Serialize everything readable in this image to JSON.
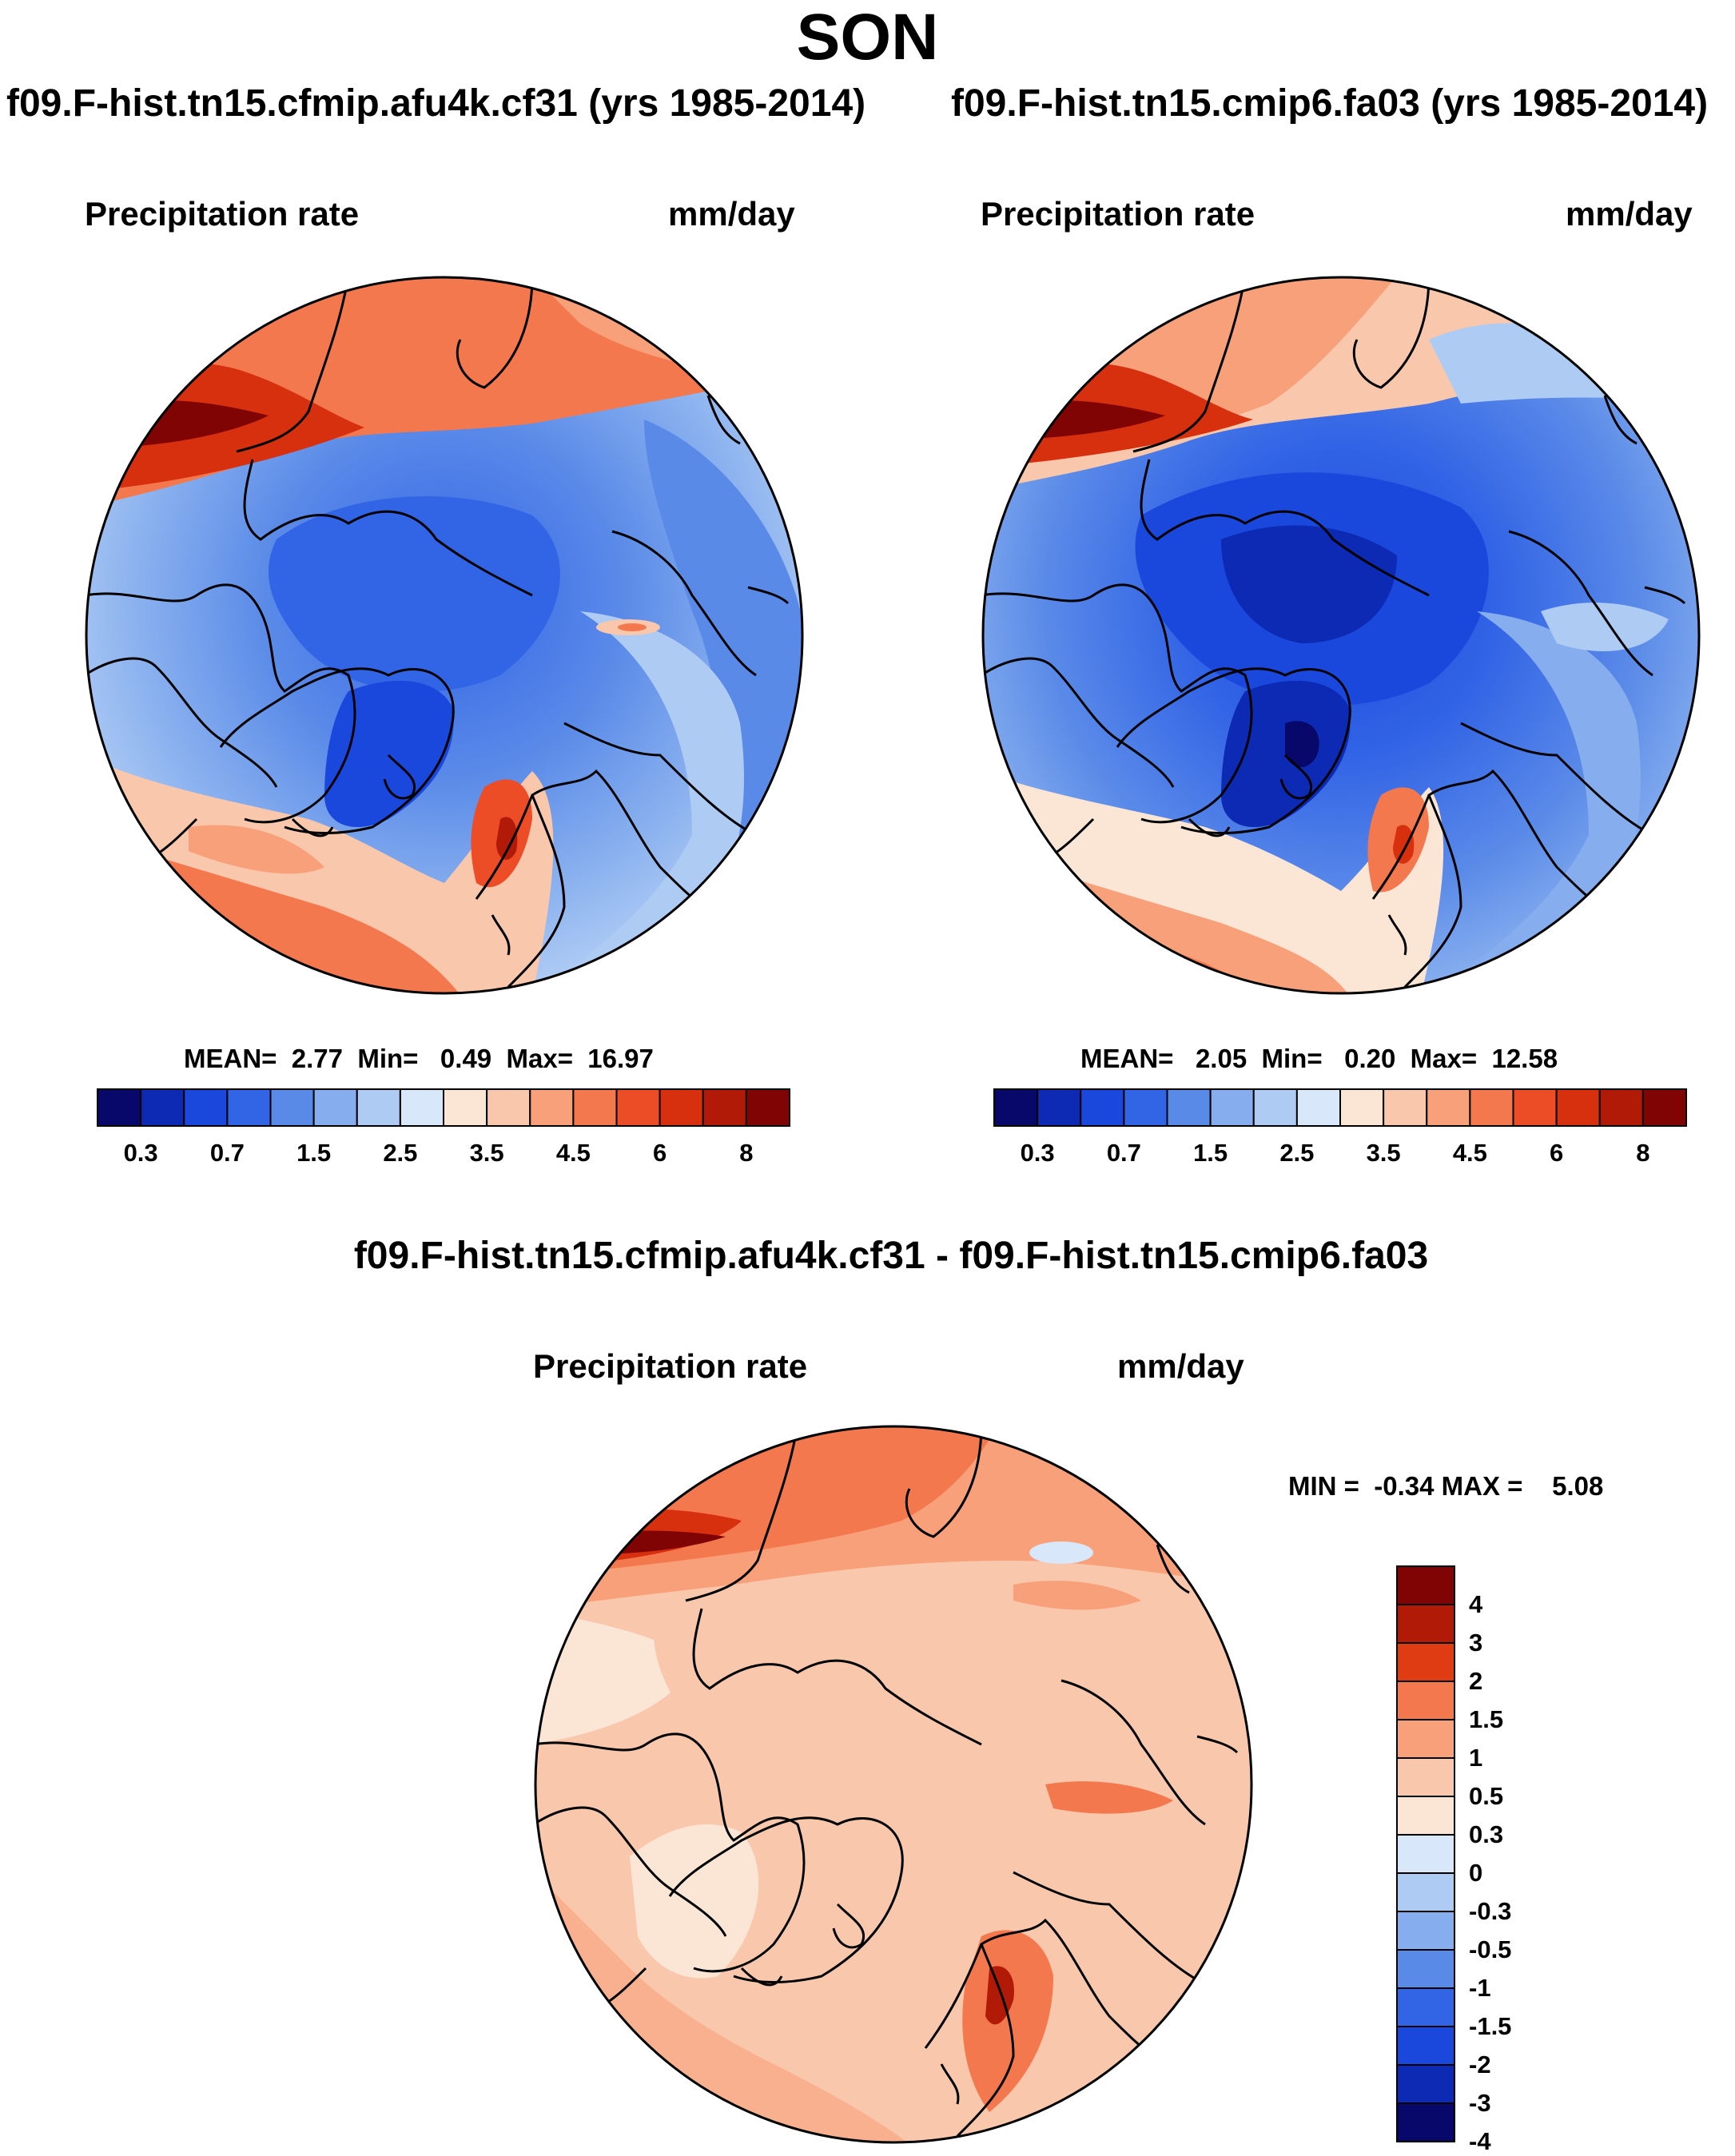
{
  "figure": {
    "season": "SON",
    "diff_title": "f09.F-hist.tn15.cfmip.afu4k.cf31 - f09.F-hist.tn15.cmip6.fa03"
  },
  "panels": {
    "left": {
      "case_title": "f09.F-hist.tn15.cfmip.afu4k.cf31 (yrs 1985-2014)",
      "variable": "Precipitation rate",
      "units": "mm/day",
      "stats_text": "MEAN=  2.77  Min=   0.49  Max=  16.97",
      "stats": {
        "mean": 2.77,
        "min": 0.49,
        "max": 16.97
      }
    },
    "right": {
      "case_title": "f09.F-hist.tn15.cmip6.fa03 (yrs 1985-2014)",
      "variable": "Precipitation rate",
      "units": "mm/day",
      "stats_text": "MEAN=   2.05  Min=   0.20  Max=  12.58",
      "stats": {
        "mean": 2.05,
        "min": 0.2,
        "max": 12.58
      }
    },
    "diff": {
      "variable": "Precipitation rate",
      "units": "mm/day",
      "stats_text": "MIN =  -0.34 MAX =    5.08",
      "stats": {
        "min": -0.34,
        "max": 5.08
      }
    }
  },
  "colorbar_abs": {
    "colors": [
      "#08086b",
      "#0c2ab4",
      "#1a48dc",
      "#3264e6",
      "#5a8ae8",
      "#86aeee",
      "#aecbf4",
      "#d8e8fa",
      "#fbe6d6",
      "#f9c7ac",
      "#f7a07a",
      "#f4784e",
      "#ec4c26",
      "#d6300e",
      "#b01a06",
      "#800404"
    ],
    "labels": [
      "0.3",
      "0.7",
      "1.5",
      "2.5",
      "3.5",
      "4.5",
      "6",
      "8"
    ]
  },
  "colorbar_diff": {
    "colors": [
      "#800404",
      "#b01a06",
      "#e03c14",
      "#f4784e",
      "#f7a07a",
      "#f9c7ac",
      "#fbe6d6",
      "#d8e8fa",
      "#aecbf4",
      "#86aeee",
      "#5a8ae8",
      "#3264e6",
      "#1a48dc",
      "#0c2ab4",
      "#08086b"
    ],
    "labels": [
      "4",
      "3",
      "2",
      "1.5",
      "1",
      "0.5",
      "0.3",
      "0",
      "-0.3",
      "-0.5",
      "-1",
      "-1.5",
      "-2",
      "-3",
      "-4"
    ]
  },
  "colors": {
    "land_outline": "#000000",
    "ocean_wet": "#ec4c26",
    "arctic_dry": "#3264e6"
  }
}
